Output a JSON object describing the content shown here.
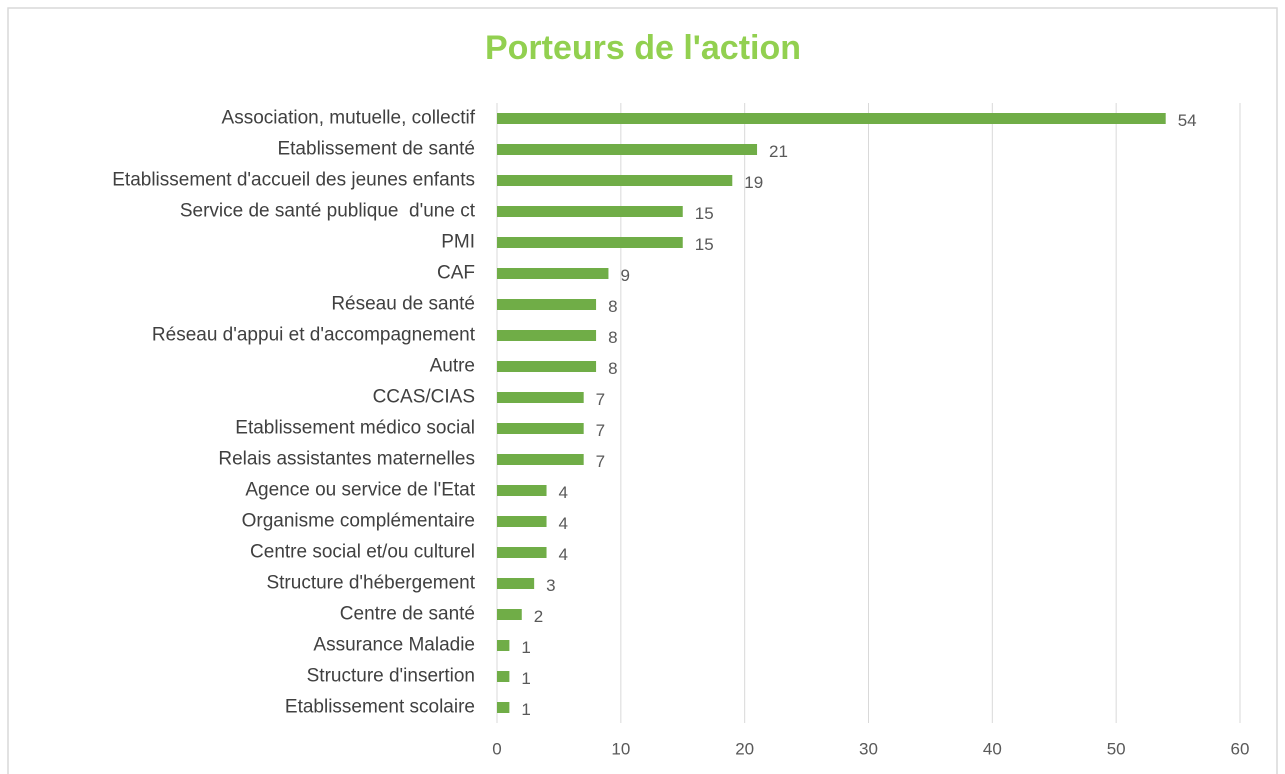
{
  "chart_data": {
    "type": "bar",
    "orientation": "horizontal",
    "title": "Porteurs de l'action",
    "categories": [
      "Association, mutuelle, collectif",
      "Etablissement de santé",
      "Etablissement d'accueil des jeunes enfants",
      "Service de santé publique  d'une ct",
      "PMI",
      "CAF",
      "Réseau de santé",
      "Réseau d'appui et d'accompagnement",
      "Autre",
      "CCAS/CIAS",
      "Etablissement médico social",
      "Relais assistantes maternelles",
      "Agence ou service de l'Etat",
      "Organisme complémentaire",
      "Centre social et/ou culturel",
      "Structure d'hébergement",
      "Centre de santé",
      "Assurance Maladie",
      "Structure d'insertion",
      "Etablissement scolaire"
    ],
    "values": [
      54,
      21,
      19,
      15,
      15,
      9,
      8,
      8,
      8,
      7,
      7,
      7,
      4,
      4,
      4,
      3,
      2,
      1,
      1,
      1
    ],
    "color": "#70ad47",
    "xlim": [
      0,
      60
    ],
    "xticks": [
      0,
      10,
      20,
      30,
      40,
      50,
      60
    ],
    "grid": true
  }
}
